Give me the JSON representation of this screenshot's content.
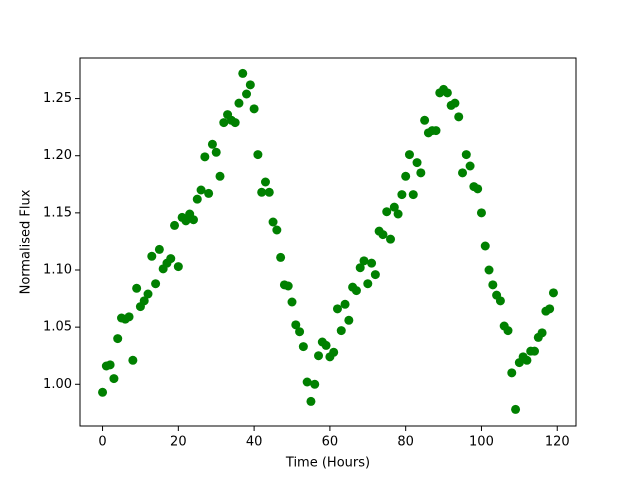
{
  "chart_data": {
    "type": "scatter",
    "x_label": "Time (Hours)",
    "y_label": "Normalised Flux",
    "color": "#008000",
    "xlim": [
      -5.95,
      124.95
    ],
    "ylim": [
      0.9635,
      1.2855
    ],
    "xticks": [
      0,
      20,
      40,
      60,
      80,
      100,
      120
    ],
    "yticks": [
      {
        "value": 1.0,
        "label": "1.00"
      },
      {
        "value": 1.05,
        "label": "1.05"
      },
      {
        "value": 1.1,
        "label": "1.10"
      },
      {
        "value": 1.15,
        "label": "1.15"
      },
      {
        "value": 1.2,
        "label": "1.20"
      },
      {
        "value": 1.25,
        "label": "1.25"
      }
    ],
    "x": [
      0,
      1,
      2,
      3,
      4,
      5,
      6,
      7,
      8,
      9,
      10,
      11,
      12,
      13,
      14,
      15,
      16,
      17,
      18,
      19,
      20,
      21,
      22,
      23,
      24,
      25,
      26,
      27,
      28,
      29,
      30,
      31,
      32,
      33,
      34,
      35,
      36,
      37,
      38,
      39,
      40,
      41,
      42,
      43,
      44,
      45,
      46,
      47,
      48,
      49,
      50,
      51,
      52,
      53,
      54,
      55,
      56,
      57,
      58,
      59,
      60,
      61,
      62,
      63,
      64,
      65,
      66,
      67,
      68,
      69,
      70,
      71,
      72,
      73,
      74,
      75,
      76,
      77,
      78,
      79,
      80,
      81,
      82,
      83,
      84,
      85,
      86,
      87,
      88,
      89,
      90,
      91,
      92,
      93,
      94,
      95,
      96,
      97,
      98,
      99,
      100,
      101,
      102,
      103,
      104,
      105,
      106,
      107,
      108,
      109,
      110,
      111,
      112,
      113,
      114,
      115,
      116,
      117,
      118,
      119
    ],
    "values": [
      0.993,
      1.016,
      1.017,
      1.005,
      1.04,
      1.058,
      1.057,
      1.059,
      1.021,
      1.084,
      1.068,
      1.073,
      1.079,
      1.112,
      1.088,
      1.118,
      1.101,
      1.106,
      1.11,
      1.139,
      1.103,
      1.146,
      1.143,
      1.149,
      1.144,
      1.162,
      1.17,
      1.199,
      1.167,
      1.21,
      1.203,
      1.182,
      1.229,
      1.236,
      1.231,
      1.229,
      1.246,
      1.272,
      1.254,
      1.262,
      1.241,
      1.201,
      1.168,
      1.177,
      1.168,
      1.142,
      1.135,
      1.111,
      1.087,
      1.086,
      1.072,
      1.052,
      1.046,
      1.033,
      1.002,
      0.985,
      1.0,
      1.025,
      1.037,
      1.034,
      1.024,
      1.028,
      1.066,
      1.047,
      1.07,
      1.056,
      1.085,
      1.082,
      1.102,
      1.108,
      1.088,
      1.106,
      1.096,
      1.134,
      1.131,
      1.151,
      1.127,
      1.155,
      1.149,
      1.166,
      1.182,
      1.201,
      1.166,
      1.194,
      1.185,
      1.231,
      1.22,
      1.222,
      1.222,
      1.255,
      1.258,
      1.255,
      1.244,
      1.246,
      1.234,
      1.185,
      1.201,
      1.191,
      1.173,
      1.171,
      1.15,
      1.121,
      1.1,
      1.087,
      1.078,
      1.073,
      1.051,
      1.047,
      1.01,
      0.978,
      1.019,
      1.024,
      1.021,
      1.029,
      1.029,
      1.041,
      1.045,
      1.064,
      1.066,
      1.08
    ]
  }
}
